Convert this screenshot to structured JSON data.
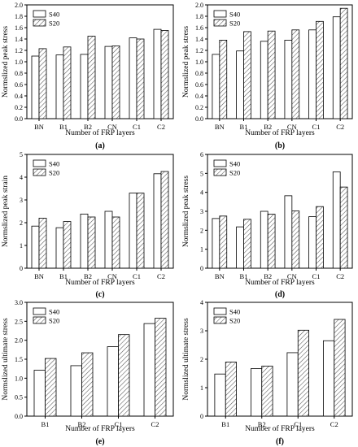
{
  "colors": {
    "s40_fill": "#ffffff",
    "s20_hatch": "#555555",
    "axis": "#000000",
    "background": "#ffffff"
  },
  "chart_data": [
    {
      "panel": "(a)",
      "type": "bar",
      "categories": [
        "BN",
        "B1",
        "B2",
        "CN",
        "C1",
        "C2"
      ],
      "series": [
        {
          "name": "S40",
          "pattern": "plain",
          "values": [
            1.1,
            1.12,
            1.13,
            1.27,
            1.42,
            1.57
          ]
        },
        {
          "name": "S20",
          "pattern": "hatched",
          "values": [
            1.23,
            1.26,
            1.45,
            1.28,
            1.4,
            1.55
          ]
        }
      ],
      "xlabel": "Number of FRP layers",
      "ylabel": "Normslized peak stress",
      "ylim": [
        0.0,
        2.0
      ],
      "yticks": [
        0.0,
        0.2,
        0.4,
        0.6,
        0.8,
        1.0,
        1.2,
        1.4,
        1.6,
        1.8,
        2.0
      ],
      "ytick_labels": [
        "0.0",
        "0.2",
        "0.4",
        "0.6",
        "0.8",
        "1.0",
        "1.2",
        "1.4",
        "1.6",
        "1.8",
        "2.0"
      ],
      "legend_position": "top-left",
      "grid": false
    },
    {
      "panel": "(b)",
      "type": "bar",
      "categories": [
        "BN",
        "B1",
        "B2",
        "CN",
        "C1",
        "C2"
      ],
      "series": [
        {
          "name": "S40",
          "pattern": "plain",
          "values": [
            1.13,
            1.19,
            1.36,
            1.38,
            1.56,
            1.79
          ]
        },
        {
          "name": "S20",
          "pattern": "hatched",
          "values": [
            1.38,
            1.53,
            1.54,
            1.56,
            1.71,
            1.94
          ]
        }
      ],
      "xlabel": "Number of FRP layers",
      "ylabel": "Normslized peak stress",
      "ylim": [
        0.0,
        2.0
      ],
      "yticks": [
        0.0,
        0.2,
        0.4,
        0.6,
        0.8,
        1.0,
        1.2,
        1.4,
        1.6,
        1.8,
        2.0
      ],
      "ytick_labels": [
        "0.0",
        "0.2",
        "0.4",
        "0.6",
        "0.8",
        "1.0",
        "1.2",
        "1.4",
        "1.6",
        "1.8",
        "2.0"
      ],
      "legend_position": "top-left",
      "grid": false
    },
    {
      "panel": "(c)",
      "type": "bar",
      "categories": [
        "BN",
        "B1",
        "B2",
        "CN",
        "C1",
        "C2"
      ],
      "series": [
        {
          "name": "S40",
          "pattern": "plain",
          "values": [
            1.85,
            1.78,
            2.38,
            2.5,
            3.3,
            4.15
          ]
        },
        {
          "name": "S20",
          "pattern": "hatched",
          "values": [
            2.2,
            2.05,
            2.25,
            2.25,
            3.3,
            4.25
          ]
        }
      ],
      "xlabel": "Number of FRP layers",
      "ylabel": "Normslized peak strain",
      "ylim": [
        0,
        5
      ],
      "yticks": [
        0,
        1,
        2,
        3,
        4,
        5
      ],
      "ytick_labels": [
        "0",
        "1",
        "2",
        "3",
        "4",
        "5"
      ],
      "legend_position": "top-left",
      "grid": false
    },
    {
      "panel": "(d)",
      "type": "bar",
      "categories": [
        "BN",
        "B1",
        "B2",
        "CN",
        "C1",
        "C2"
      ],
      "series": [
        {
          "name": "S40",
          "pattern": "plain",
          "values": [
            2.62,
            2.18,
            3.0,
            3.82,
            2.72,
            5.08
          ]
        },
        {
          "name": "S20",
          "pattern": "hatched",
          "values": [
            2.75,
            2.58,
            2.85,
            3.02,
            3.25,
            4.28
          ]
        }
      ],
      "xlabel": "Number of FRP layers",
      "ylabel": "Normslized peak stress",
      "ylim": [
        0,
        6
      ],
      "yticks": [
        0,
        1,
        2,
        3,
        4,
        5,
        6
      ],
      "ytick_labels": [
        "0",
        "1",
        "2",
        "3",
        "4",
        "5",
        "6"
      ],
      "legend_position": "top-left",
      "grid": false
    },
    {
      "panel": "(e)",
      "type": "bar",
      "categories": [
        "B1",
        "B2",
        "C1",
        "C2"
      ],
      "series": [
        {
          "name": "S40",
          "pattern": "plain",
          "values": [
            1.21,
            1.33,
            1.83,
            2.44
          ]
        },
        {
          "name": "S20",
          "pattern": "hatched",
          "values": [
            1.52,
            1.67,
            2.15,
            2.58
          ]
        }
      ],
      "xlabel": "Number of FRP layers",
      "ylabel": "Normslized ultimate stress",
      "ylim": [
        0.0,
        3.0
      ],
      "yticks": [
        0.0,
        0.5,
        1.0,
        1.5,
        2.0,
        2.5,
        3.0
      ],
      "ytick_labels": [
        "0.0",
        "0.5",
        "1.0",
        "1.5",
        "2.0",
        "2.5",
        "3.0"
      ],
      "legend_position": "top-left",
      "grid": false
    },
    {
      "panel": "(f)",
      "type": "bar",
      "categories": [
        "B1",
        "B2",
        "C1",
        "C2"
      ],
      "series": [
        {
          "name": "S40",
          "pattern": "plain",
          "values": [
            1.48,
            1.67,
            2.23,
            2.65
          ]
        },
        {
          "name": "S20",
          "pattern": "hatched",
          "values": [
            1.9,
            1.76,
            3.02,
            3.4
          ]
        }
      ],
      "xlabel": "Number of FRP layers",
      "ylabel": "Normslized ultimate stress",
      "ylim": [
        0,
        4
      ],
      "yticks": [
        0,
        1,
        2,
        3,
        4
      ],
      "ytick_labels": [
        "0",
        "1",
        "2",
        "3",
        "4"
      ],
      "legend_position": "top-left",
      "grid": false
    }
  ]
}
